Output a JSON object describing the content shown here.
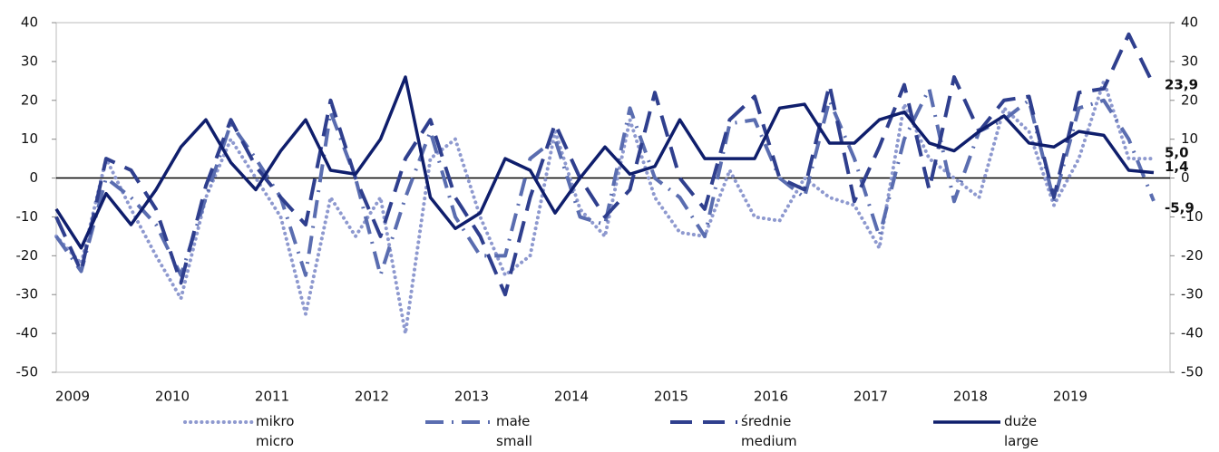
{
  "chart_data": {
    "type": "line",
    "categories": [
      "2009",
      null,
      null,
      null,
      "2010",
      null,
      null,
      null,
      "2011",
      null,
      null,
      null,
      "2012",
      null,
      null,
      null,
      "2013",
      null,
      null,
      null,
      "2014",
      null,
      null,
      null,
      "2015",
      null,
      null,
      null,
      "2016",
      null,
      null,
      null,
      "2017",
      null,
      null,
      null,
      "2018",
      null,
      null,
      null,
      "2019",
      null,
      null,
      null,
      null
    ],
    "ylim": [
      -50,
      40
    ],
    "yticks": [
      -50,
      -40,
      -30,
      -20,
      -10,
      0,
      10,
      20,
      30,
      40
    ],
    "y2lim": [
      -50,
      40
    ],
    "y2ticks": [
      -50,
      -40,
      -30,
      -20,
      -10,
      0,
      10,
      20,
      30,
      40
    ],
    "series": [
      {
        "name": "mikro\nmicro",
        "color": "#8e99cf",
        "style": "dotted",
        "values": [
          -15,
          -22,
          5,
          -8,
          -20,
          -31,
          -5,
          10,
          0,
          -10,
          -35,
          -5,
          -15,
          -5,
          -40,
          5,
          10,
          -10,
          -25,
          -20,
          12,
          -8,
          -15,
          15,
          -5,
          -14,
          -15,
          2,
          -10,
          -11,
          0,
          -5,
          -7,
          -18,
          19,
          5,
          0,
          -5,
          18,
          12,
          -7,
          5,
          25,
          5,
          5.0
        ],
        "value_labels": [
          null,
          null,
          null,
          null,
          null,
          null,
          null,
          null,
          null,
          null,
          null,
          null,
          null,
          null,
          null,
          null,
          null,
          null,
          null,
          null,
          null,
          null,
          null,
          null,
          null,
          null,
          null,
          null,
          null,
          null,
          null,
          null,
          null,
          null,
          null,
          null,
          null,
          null,
          null,
          null,
          null,
          null,
          null,
          null,
          "5,0"
        ]
      },
      {
        "name": "małe\nsmall",
        "color": "#5a6db0",
        "style": "dashdot",
        "values": [
          -15,
          -24,
          0,
          -5,
          -12,
          -25,
          -5,
          14,
          5,
          -5,
          -25,
          17,
          0,
          -25,
          -5,
          12,
          -10,
          -20,
          -20,
          5,
          10,
          -10,
          -12,
          18,
          0,
          -5,
          -15,
          14,
          15,
          0,
          -5,
          20,
          5,
          -15,
          10,
          23,
          -6,
          12,
          15,
          20,
          -6,
          18,
          20,
          10,
          -5.9
        ],
        "value_labels": [
          null,
          null,
          null,
          null,
          null,
          null,
          null,
          null,
          null,
          null,
          null,
          null,
          null,
          null,
          null,
          null,
          null,
          null,
          null,
          null,
          null,
          null,
          null,
          null,
          null,
          null,
          null,
          null,
          null,
          null,
          null,
          null,
          null,
          null,
          null,
          null,
          null,
          null,
          null,
          null,
          null,
          null,
          null,
          null,
          "-5,9"
        ]
      },
      {
        "name": "średnie\nmedium",
        "color": "#2f3f8e",
        "style": "dashed",
        "values": [
          -10,
          -24,
          5,
          2,
          -8,
          -27,
          -2,
          15,
          3,
          -5,
          -12,
          20,
          0,
          -15,
          5,
          15,
          -5,
          -15,
          -30,
          -5,
          14,
          0,
          -10,
          -3,
          22,
          0,
          -8,
          15,
          21,
          0,
          -3,
          24,
          -6,
          8,
          24,
          -3,
          26,
          12,
          20,
          21,
          -5,
          22,
          23,
          37,
          23.9
        ],
        "value_labels": [
          null,
          null,
          null,
          null,
          null,
          null,
          null,
          null,
          null,
          null,
          null,
          null,
          null,
          null,
          null,
          null,
          null,
          null,
          null,
          null,
          null,
          null,
          null,
          null,
          null,
          null,
          null,
          null,
          null,
          null,
          null,
          null,
          null,
          null,
          null,
          null,
          null,
          null,
          null,
          null,
          null,
          null,
          null,
          null,
          "23,9"
        ]
      },
      {
        "name": "duże\nlarge",
        "color": "#0f1e6c",
        "style": "solid",
        "values": [
          -8,
          -18,
          -4,
          -12,
          -3,
          8,
          15,
          4,
          -3,
          7,
          15,
          2,
          1,
          10,
          26,
          -5,
          -13,
          -9,
          5,
          2,
          -9,
          0,
          8,
          1,
          3,
          15,
          5,
          5,
          5,
          18,
          19,
          9,
          9,
          15,
          17,
          9,
          7,
          12,
          16,
          9,
          8,
          12,
          11,
          2,
          1.4
        ],
        "value_labels": [
          null,
          null,
          null,
          null,
          null,
          null,
          null,
          null,
          null,
          null,
          null,
          null,
          null,
          null,
          null,
          null,
          null,
          null,
          null,
          null,
          null,
          null,
          null,
          null,
          null,
          null,
          null,
          null,
          null,
          null,
          null,
          null,
          null,
          null,
          null,
          null,
          null,
          null,
          null,
          null,
          null,
          null,
          null,
          null,
          "1,4"
        ]
      }
    ]
  }
}
